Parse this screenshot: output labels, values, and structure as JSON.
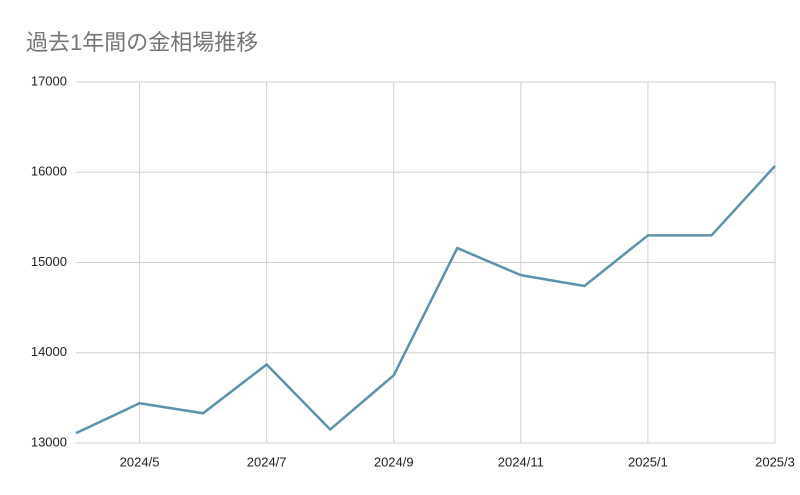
{
  "chart_data": {
    "type": "line",
    "title": "過去1年間の金相場推移",
    "categories": [
      null,
      "2024/5",
      null,
      "2024/7",
      null,
      "2024/9",
      null,
      "2024/11",
      null,
      "2025/1",
      null,
      "2025/3"
    ],
    "values": [
      13110,
      13440,
      13330,
      13870,
      13150,
      13750,
      15160,
      14860,
      14740,
      15300,
      15300,
      16070
    ],
    "color": "#5b93ae",
    "ylim": [
      13000,
      17000
    ],
    "yticks": [
      13000,
      14000,
      15000,
      16000,
      17000
    ],
    "grid": true
  }
}
